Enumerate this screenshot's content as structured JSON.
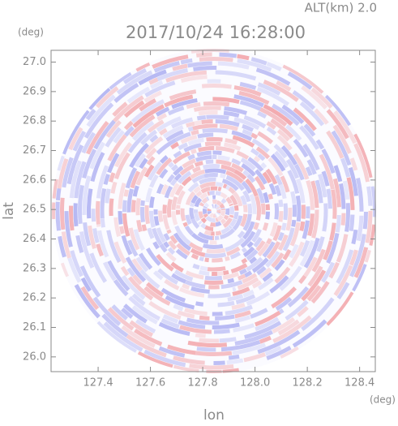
{
  "chart_data": {
    "type": "radar_ppi",
    "title": "2017/10/24 16:28:00",
    "subtitle": "ALT(km)  2.0",
    "xlabel": "lon",
    "ylabel": "lat",
    "x_unit": "(deg)",
    "y_unit": "(deg)",
    "xlim": [
      127.22,
      128.46
    ],
    "ylim": [
      25.95,
      27.04
    ],
    "xticks": [
      127.4,
      127.6,
      127.8,
      {
        "value": 128,
        "label": "128.0"
      },
      128.2,
      128.4
    ],
    "yticks": [
      {
        "value": 26,
        "label": "26.0"
      },
      26.1,
      26.2,
      26.3,
      26.4,
      26.5,
      26.6,
      26.7,
      26.8,
      26.9,
      {
        "value": 27,
        "label": "27.0"
      }
    ]
  }
}
